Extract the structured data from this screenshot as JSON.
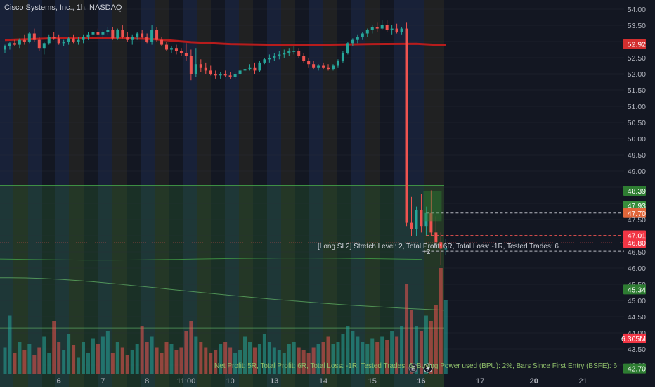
{
  "header": {
    "title": "Cisco Systems, Inc., 1h, NASDAQ"
  },
  "annotations": {
    "stretch_label": "[Long SL2] Stretch Level: 2, Total Profit: 6R, Total Loss: -1R, Tested Trades: 6",
    "plus_label": "+2",
    "bottom_label": "Net Profit: 5R, Total Profit: 6R, Total Loss: -1R, Tested Trades: 6, Buying Power used (BPU): 2%, Bars Since First Entry (BSFE): 6"
  },
  "chart_data": {
    "type": "candlestick",
    "title": "Cisco Systems, Inc., 1h, NASDAQ",
    "ylim": [
      42.95,
      54.2
    ],
    "y_ticks": [
      "54.00",
      "53.50",
      "53.00",
      "52.50",
      "52.00",
      "51.50",
      "51.00",
      "50.50",
      "50.00",
      "49.50",
      "49.00",
      "48.50",
      "48.00",
      "47.50",
      "47.00",
      "46.50",
      "46.00",
      "45.50",
      "45.00",
      "44.50",
      "44.00",
      "43.50",
      "43.00"
    ],
    "x_ticks": [
      {
        "label": "6",
        "bar": 11,
        "bold": true
      },
      {
        "label": "7",
        "bar": 20,
        "bold": false
      },
      {
        "label": "8",
        "bar": 29,
        "bold": false
      },
      {
        "label": "11:00",
        "bar": 37,
        "bold": false
      },
      {
        "label": "10",
        "bar": 46,
        "bold": false
      },
      {
        "label": "13",
        "bar": 55,
        "bold": true
      },
      {
        "label": "14",
        "bar": 65,
        "bold": false
      },
      {
        "label": "15",
        "bar": 75,
        "bold": false
      },
      {
        "label": "16",
        "bar": 85,
        "bold": true
      },
      {
        "label": "17",
        "bar": 97,
        "bold": false
      },
      {
        "label": "20",
        "bar": 108,
        "bold": true
      },
      {
        "label": "21",
        "bar": 118,
        "bold": false
      }
    ],
    "colors": {
      "up": "#26a69a",
      "down": "#ef5350",
      "ma": "#b71c1c",
      "bg": "#131722",
      "band": "#2e7d32"
    },
    "bar_count": 91,
    "candles": [
      [
        52.75,
        52.9,
        52.65,
        52.85
      ],
      [
        52.85,
        53.0,
        52.75,
        52.95
      ],
      [
        52.95,
        53.05,
        52.85,
        52.9
      ],
      [
        52.9,
        53.1,
        52.8,
        53.05
      ],
      [
        53.05,
        53.2,
        52.9,
        53.0
      ],
      [
        53.0,
        53.3,
        52.95,
        53.25
      ],
      [
        53.25,
        53.4,
        53.0,
        53.05
      ],
      [
        53.05,
        53.15,
        52.7,
        52.8
      ],
      [
        52.8,
        53.0,
        52.6,
        52.95
      ],
      [
        52.95,
        53.2,
        52.9,
        53.15
      ],
      [
        53.15,
        53.3,
        53.05,
        53.1
      ],
      [
        53.1,
        53.2,
        52.9,
        52.95
      ],
      [
        52.95,
        53.05,
        52.85,
        53.0
      ],
      [
        53.0,
        53.15,
        52.9,
        53.1
      ],
      [
        53.1,
        53.2,
        52.95,
        53.0
      ],
      [
        53.0,
        53.15,
        52.9,
        53.05
      ],
      [
        53.05,
        53.2,
        52.95,
        53.15
      ],
      [
        53.15,
        53.3,
        53.05,
        53.2
      ],
      [
        53.2,
        53.35,
        53.1,
        53.3
      ],
      [
        53.3,
        53.4,
        53.15,
        53.2
      ],
      [
        53.2,
        53.35,
        53.1,
        53.3
      ],
      [
        53.3,
        53.45,
        53.2,
        53.35
      ],
      [
        53.35,
        53.45,
        53.05,
        53.1
      ],
      [
        53.1,
        53.4,
        53.05,
        53.35
      ],
      [
        53.35,
        53.5,
        53.1,
        53.15
      ],
      [
        53.15,
        53.3,
        53.0,
        53.05
      ],
      [
        53.05,
        53.2,
        52.9,
        53.15
      ],
      [
        53.15,
        53.3,
        53.05,
        53.25
      ],
      [
        53.25,
        53.35,
        53.1,
        53.15
      ],
      [
        53.15,
        53.25,
        52.95,
        53.0
      ],
      [
        53.0,
        53.5,
        52.9,
        53.35
      ],
      [
        53.35,
        53.45,
        53.0,
        53.05
      ],
      [
        53.05,
        53.15,
        52.85,
        52.9
      ],
      [
        52.9,
        53.0,
        52.7,
        52.75
      ],
      [
        52.75,
        52.85,
        52.65,
        52.8
      ],
      [
        52.8,
        52.9,
        52.6,
        52.7
      ],
      [
        52.7,
        52.8,
        52.55,
        52.65
      ],
      [
        52.65,
        52.95,
        52.4,
        52.55
      ],
      [
        52.55,
        52.75,
        51.8,
        52.0
      ],
      [
        52.0,
        52.8,
        51.9,
        52.3
      ],
      [
        52.3,
        52.45,
        52.05,
        52.2
      ],
      [
        52.2,
        52.35,
        52.0,
        52.1
      ],
      [
        52.1,
        52.25,
        51.95,
        52.0
      ],
      [
        52.0,
        52.1,
        51.85,
        51.95
      ],
      [
        51.95,
        52.05,
        51.85,
        52.0
      ],
      [
        52.0,
        52.1,
        51.9,
        51.95
      ],
      [
        51.95,
        52.05,
        51.85,
        51.9
      ],
      [
        51.9,
        52.05,
        51.85,
        52.0
      ],
      [
        52.0,
        52.15,
        51.95,
        52.1
      ],
      [
        52.1,
        52.2,
        52.05,
        52.15
      ],
      [
        52.15,
        52.3,
        52.1,
        52.2
      ],
      [
        52.2,
        52.35,
        52.0,
        52.1
      ],
      [
        52.1,
        52.4,
        52.05,
        52.35
      ],
      [
        52.35,
        52.5,
        52.3,
        52.45
      ],
      [
        52.45,
        52.6,
        52.35,
        52.5
      ],
      [
        52.5,
        52.65,
        52.4,
        52.55
      ],
      [
        52.55,
        52.7,
        52.45,
        52.6
      ],
      [
        52.6,
        52.75,
        52.5,
        52.65
      ],
      [
        52.65,
        52.8,
        52.55,
        52.7
      ],
      [
        52.7,
        52.85,
        52.6,
        52.7
      ],
      [
        52.7,
        52.8,
        52.5,
        52.55
      ],
      [
        52.55,
        52.65,
        52.35,
        52.4
      ],
      [
        52.4,
        52.5,
        52.2,
        52.3
      ],
      [
        52.3,
        52.4,
        52.15,
        52.2
      ],
      [
        52.2,
        52.3,
        52.1,
        52.25
      ],
      [
        52.25,
        52.35,
        52.15,
        52.2
      ],
      [
        52.2,
        52.3,
        52.1,
        52.15
      ],
      [
        52.15,
        52.3,
        52.1,
        52.25
      ],
      [
        52.25,
        52.45,
        52.2,
        52.4
      ],
      [
        52.4,
        52.7,
        52.35,
        52.65
      ],
      [
        52.65,
        53.0,
        52.6,
        52.95
      ],
      [
        52.95,
        53.1,
        52.85,
        53.05
      ],
      [
        53.05,
        53.2,
        52.95,
        53.15
      ],
      [
        53.15,
        53.3,
        53.05,
        53.25
      ],
      [
        53.25,
        53.4,
        53.15,
        53.35
      ],
      [
        53.35,
        53.5,
        53.25,
        53.45
      ],
      [
        53.45,
        53.6,
        53.3,
        53.4
      ],
      [
        53.4,
        53.65,
        53.35,
        53.5
      ],
      [
        53.5,
        53.65,
        53.3,
        53.35
      ],
      [
        53.35,
        53.5,
        53.2,
        53.4
      ],
      [
        53.4,
        53.55,
        53.25,
        53.3
      ],
      [
        53.3,
        53.45,
        53.2,
        53.4
      ],
      [
        53.4,
        53.6,
        47.3,
        47.4
      ],
      [
        47.4,
        48.2,
        47.0,
        47.2
      ],
      [
        47.2,
        47.9,
        47.0,
        47.8
      ],
      [
        47.8,
        48.3,
        47.1,
        47.3
      ],
      [
        47.3,
        47.9,
        47.0,
        47.7
      ],
      [
        47.7,
        48.4,
        47.0,
        47.1
      ],
      [
        47.1,
        47.6,
        46.7,
        46.8
      ],
      [
        46.8,
        47.1,
        46.1,
        46.6
      ],
      [
        46.6,
        46.9,
        46.4,
        46.6
      ]
    ],
    "ma_series": [
      [
        0,
        53.05
      ],
      [
        10,
        53.1
      ],
      [
        20,
        53.12
      ],
      [
        30,
        53.08
      ],
      [
        38,
        52.98
      ],
      [
        46,
        52.92
      ],
      [
        55,
        52.9
      ],
      [
        65,
        52.9
      ],
      [
        75,
        52.92
      ],
      [
        84,
        52.93
      ],
      [
        90,
        52.88
      ]
    ],
    "volumes": [
      0.25,
      0.55,
      0.2,
      0.3,
      0.22,
      0.28,
      0.18,
      0.25,
      0.35,
      0.2,
      0.5,
      0.3,
      0.22,
      0.38,
      0.27,
      0.15,
      0.3,
      0.2,
      0.33,
      0.28,
      0.35,
      0.4,
      0.2,
      0.3,
      0.25,
      0.18,
      0.22,
      0.28,
      0.45,
      0.3,
      0.35,
      0.25,
      0.2,
      0.3,
      0.28,
      0.22,
      0.25,
      0.4,
      0.5,
      0.35,
      0.3,
      0.25,
      0.2,
      0.22,
      0.28,
      0.3,
      0.25,
      0.2,
      0.22,
      0.35,
      0.3,
      0.25,
      0.28,
      0.38,
      0.3,
      0.25,
      0.22,
      0.2,
      0.28,
      0.3,
      0.25,
      0.22,
      0.2,
      0.25,
      0.28,
      0.3,
      0.35,
      0.28,
      0.3,
      0.38,
      0.45,
      0.4,
      0.35,
      0.3,
      0.28,
      0.33,
      0.3,
      0.35,
      0.32,
      0.4,
      0.35,
      0.45,
      0.85,
      0.6,
      0.45,
      0.4,
      0.55,
      0.5,
      0.65,
      1.0,
      0.7
    ],
    "horizontal_lines": [
      {
        "price": 47.7,
        "color": "#d1d4dc",
        "style": "dashed",
        "from_bar": 86
      },
      {
        "price": 47.01,
        "color": "#ef5350",
        "style": "dashed",
        "from_bar": 86
      },
      {
        "price": 46.52,
        "color": "#d1d4dc",
        "style": "dashed",
        "from_bar": 86
      }
    ],
    "price_labels": [
      {
        "text": "54.00",
        "price": 54.0
      },
      {
        "text": "53.50",
        "price": 53.5
      },
      {
        "text": "52.92",
        "price": 52.92,
        "bg": "#d32f2f",
        "fg": "#ffffff"
      },
      {
        "text": "52.50",
        "price": 52.5
      },
      {
        "text": "52.00",
        "price": 52.0
      },
      {
        "text": "51.50",
        "price": 51.5
      },
      {
        "text": "51.00",
        "price": 51.0
      },
      {
        "text": "50.50",
        "price": 50.5
      },
      {
        "text": "50.00",
        "price": 50.0
      },
      {
        "text": "49.50",
        "price": 49.5
      },
      {
        "text": "49.00",
        "price": 49.0
      },
      {
        "text": "48.39",
        "price": 48.39,
        "bg": "#2e7d32",
        "fg": "#ffffff"
      },
      {
        "text": "47.93",
        "price": 47.93,
        "bg": "#388e3c",
        "fg": "#ffffff"
      },
      {
        "text": "47.70",
        "price": 47.7,
        "bg": "#e0663a",
        "fg": "#ffffff"
      },
      {
        "text": "47.50",
        "price": 47.5
      },
      {
        "text": "47.01",
        "price": 47.01,
        "bg": "#f23645",
        "fg": "#ffffff"
      },
      {
        "text": "46.80",
        "price": 46.78,
        "bg": "#f23645",
        "fg": "#ffffff"
      },
      {
        "text": "46.50",
        "price": 46.5
      },
      {
        "text": "46.00",
        "price": 46.0
      },
      {
        "text": "45.50",
        "price": 45.5
      },
      {
        "text": "45.34",
        "price": 45.34,
        "bg": "#2e7d32",
        "fg": "#ffffff"
      },
      {
        "text": "45.00",
        "price": 45.0
      },
      {
        "text": "44.50",
        "price": 44.5
      },
      {
        "text": "44.00",
        "price": 44.0
      },
      {
        "text": "6.305M",
        "price": 43.83,
        "bg": "#f23645",
        "fg": "#ffffff"
      },
      {
        "text": "43.50",
        "price": 43.5
      },
      {
        "text": "43.00",
        "price": 43.0
      },
      {
        "text": "42.70",
        "price": 42.9,
        "bg": "#2e7d32",
        "fg": "#ffffff"
      }
    ]
  }
}
